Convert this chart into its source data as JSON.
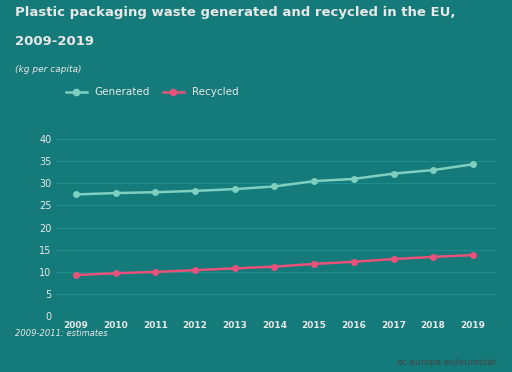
{
  "title_line1": "Plastic packaging waste generated and recycled in the EU,",
  "title_line2": "2009-2019",
  "ylabel": "(kg per capita)",
  "footnote": "2009-2011: estimates",
  "watermark": "ec.europa.eu/eurostat",
  "years": [
    2009,
    2010,
    2011,
    2012,
    2013,
    2014,
    2015,
    2016,
    2017,
    2018,
    2019
  ],
  "generated": [
    27.5,
    27.8,
    28.0,
    28.3,
    28.7,
    29.3,
    30.5,
    31.0,
    32.2,
    33.0,
    34.3
  ],
  "recycled": [
    9.3,
    9.7,
    10.0,
    10.4,
    10.8,
    11.2,
    11.8,
    12.3,
    12.9,
    13.4,
    13.8
  ],
  "bg_color": "#147a7a",
  "generated_color": "#7ecfc0",
  "recycled_color": "#e8527a",
  "title_color": "#e8e8e8",
  "label_color": "#e8e8e8",
  "grid_color": "#1d8f8f",
  "ylim": [
    0,
    42
  ],
  "yticks": [
    0,
    5,
    10,
    15,
    20,
    25,
    30,
    35,
    40
  ],
  "legend_generated": "Generated",
  "legend_recycled": "Recycled",
  "bottom_bar_color": "#f0f0f0"
}
